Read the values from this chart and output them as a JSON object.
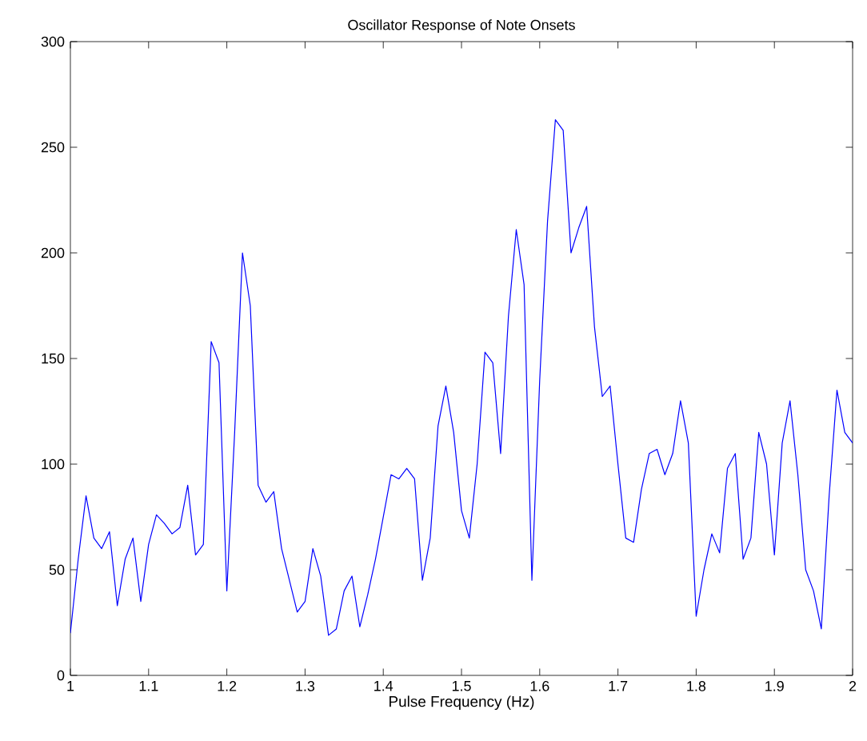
{
  "chart_data": {
    "type": "line",
    "title": "Oscillator Response of Note Onsets",
    "xlabel": "Pulse Frequency (Hz)",
    "xlim": [
      1,
      2
    ],
    "ylim": [
      0,
      300
    ],
    "xticks": [
      1,
      1.1,
      1.2,
      1.3,
      1.4,
      1.5,
      1.6,
      1.7,
      1.8,
      1.9,
      2
    ],
    "yticks": [
      0,
      50,
      100,
      150,
      200,
      250,
      300
    ],
    "series": [
      {
        "color": "#0000ff",
        "x": [
          1.0,
          1.01,
          1.02,
          1.03,
          1.04,
          1.05,
          1.06,
          1.07,
          1.08,
          1.09,
          1.1,
          1.11,
          1.12,
          1.13,
          1.14,
          1.15,
          1.16,
          1.17,
          1.18,
          1.19,
          1.2,
          1.21,
          1.22,
          1.23,
          1.24,
          1.25,
          1.26,
          1.27,
          1.28,
          1.29,
          1.3,
          1.31,
          1.32,
          1.33,
          1.34,
          1.35,
          1.36,
          1.37,
          1.38,
          1.39,
          1.4,
          1.41,
          1.42,
          1.43,
          1.44,
          1.45,
          1.46,
          1.47,
          1.48,
          1.49,
          1.5,
          1.51,
          1.52,
          1.53,
          1.54,
          1.55,
          1.56,
          1.57,
          1.58,
          1.59,
          1.6,
          1.61,
          1.62,
          1.63,
          1.64,
          1.65,
          1.66,
          1.67,
          1.68,
          1.69,
          1.7,
          1.71,
          1.72,
          1.73,
          1.74,
          1.75,
          1.76,
          1.77,
          1.78,
          1.79,
          1.8,
          1.81,
          1.82,
          1.83,
          1.84,
          1.85,
          1.86,
          1.87,
          1.88,
          1.89,
          1.9,
          1.91,
          1.92,
          1.93,
          1.94,
          1.95,
          1.96,
          1.97,
          1.98,
          1.99,
          2.0
        ],
        "values": [
          20,
          55,
          85,
          65,
          60,
          68,
          33,
          55,
          65,
          35,
          62,
          76,
          72,
          67,
          70,
          90,
          57,
          62,
          158,
          148,
          40,
          115,
          200,
          175,
          90,
          82,
          87,
          60,
          45,
          30,
          35,
          60,
          47,
          19,
          22,
          40,
          47,
          23,
          38,
          55,
          75,
          95,
          93,
          98,
          93,
          45,
          65,
          118,
          137,
          115,
          78,
          65,
          100,
          153,
          148,
          105,
          170,
          211,
          185,
          45,
          140,
          215,
          263,
          258,
          200,
          212,
          222,
          165,
          132,
          137,
          100,
          65,
          63,
          88,
          105,
          107,
          95,
          105,
          130,
          110,
          28,
          50,
          67,
          58,
          98,
          105,
          55,
          65,
          115,
          100,
          57,
          110,
          130,
          95,
          50,
          40,
          22,
          85,
          135,
          115,
          110
        ]
      }
    ]
  }
}
